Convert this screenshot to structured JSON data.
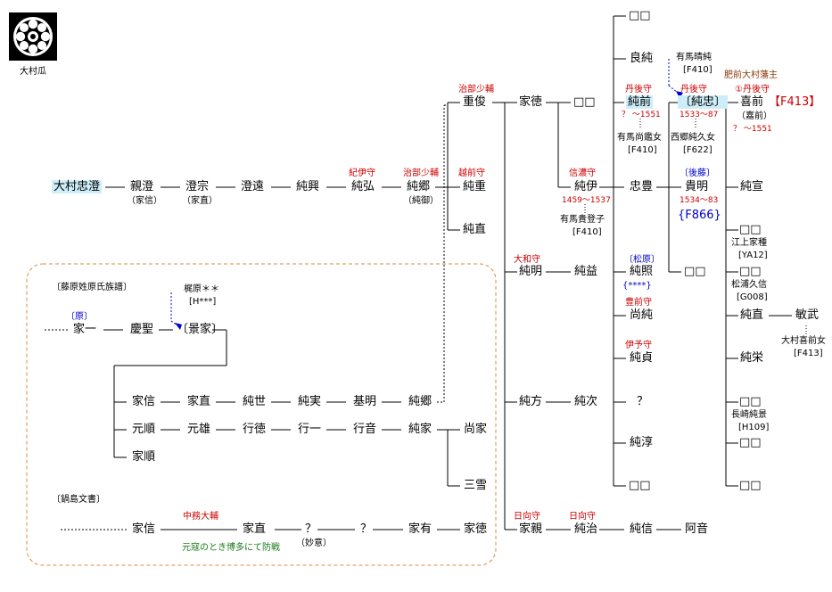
{
  "crest_label": "大村瓜",
  "section_fujiwara": "〔藤原姓原氏族譜〕",
  "section_nabeshima": "〔鍋島文書〕",
  "names": {
    "tadazumi": "大村忠澄",
    "chikasumi": "親澄",
    "chikasumi_alt": "（家信）",
    "sumimune": "澄宗",
    "sumimune_alt": "（家直）",
    "sumito": "澄遠",
    "sumioki": "純興",
    "sumihiro": "純弘",
    "sumisato": "純郷",
    "sumisato_alt": "（純御）",
    "shigetoshi": "重俊",
    "sumishige": "純重",
    "suminao_a": "純直",
    "ietoku_a": "家徳",
    "unknown_a": "□□",
    "sumiakira": "純明",
    "sumimasu": "純益",
    "sumikata": "純方",
    "sumitsugu": "純次",
    "iechika": "家親",
    "sumiharu": "純治",
    "suminobu": "純信",
    "anon": "阿音",
    "top_box": "□□",
    "yoshizumi": "良純",
    "sumisaki": "純前",
    "sumikore": "純伊",
    "tadatoyo": "忠豊",
    "sumiteru": "純照",
    "naozumi": "尚純",
    "sumisada": "純貞",
    "question_a": "？",
    "sumiatsu": "純淳",
    "bottom_box": "□□",
    "sumitada": "〔純忠〕",
    "takaakira": "貴明",
    "mid_box": "□□",
    "yoshisaki": "喜前",
    "yoshisaki_alt": "（嘉前）",
    "sumimune2": "純宣",
    "right_box1": "□□",
    "right_box2": "□□",
    "suminao_b": "純直",
    "sumiei": "純栄",
    "right_box3": "□□",
    "right_box4": "□□",
    "right_box5": "□□",
    "toshitake": "敏武",
    "ieichi": "家一",
    "keisei": "慶聖",
    "kageie": "〔景家〕",
    "ienobu_a": "家信",
    "ienao_a": "家直",
    "sumiyo": "純世",
    "sumizane": "純実",
    "motoaki": "基明",
    "sumisato_b": "純郷",
    "motoyori": "元順",
    "motoo": "元雄",
    "yukinori": "行徳",
    "yukikazu": "行一",
    "yukioto": "行音",
    "sumiie": "純家",
    "naoie": "尚家",
    "sansetsu": "三雪",
    "iejun": "家順",
    "ienobu_b": "家信",
    "ienao_b": "家直",
    "question_b": "？",
    "myoi": "（妙意）",
    "question_c": "？",
    "iearu": "家有",
    "ietoku_b": "家徳"
  },
  "titles": {
    "kii": "紀伊守",
    "jibu_sumisato": "治部少輔",
    "echizen": "越前守",
    "jibu_shige": "治部少輔",
    "yamato": "大和守",
    "hyuga_a": "日向守",
    "hyuga_b": "日向守",
    "shinano": "信濃守",
    "tango_a": "丹後守",
    "tango_b": "丹後守",
    "buzen": "豊前守",
    "iyo": "伊予守",
    "hizen_lord": "肥前大村藩主",
    "tango_1": "①丹後守",
    "nakatsukasa": "中務大輔"
  },
  "surnames": {
    "gosaka": "〔後藤〕",
    "matsubara": "〔松原〕",
    "hara": "〔原〕"
  },
  "dates": {
    "sumisaki": "？ ～1551",
    "sumitada": "1533～87",
    "sumikore": "1459～1537",
    "takaakira": "1534～83",
    "yoshisaki": "？ ～1551"
  },
  "notes": {
    "arima_haru": "有馬晴純",
    "arima_haru_ref": "[F410]",
    "arima_daughter": "有馬尚鑑女",
    "arima_daughter_ref": "[F410]",
    "saigo_daughter": "西郷純久女",
    "saigo_ref": "[F622]",
    "arima_koko": "有馬貴登子",
    "arima_koko_ref": "[F410]",
    "egami": "江上家種",
    "egami_ref": "[YA12]",
    "matsura": "松浦久信",
    "matsura_ref": "[G008]",
    "nagasaki": "長崎純景",
    "nagasaki_ref": "[H109]",
    "omura_daughter": "大村喜前女",
    "omura_daughter_ref": "[F413]",
    "kajiwara": "梶原＊＊",
    "kajiwara_ref": "[H***]",
    "genko": "元寇のとき博多にて防戦"
  },
  "refs": {
    "yoshisaki": "【F413】",
    "takaakira": "{F866}",
    "sumiteru": "{****}"
  },
  "colors": {
    "title_red": "#cc0000",
    "surname_blue": "#0000cc",
    "lord_brown": "#8b3a0a",
    "note_green": "#1a7a1a",
    "highlight": "#cdeef8",
    "group_border": "#e08a3a"
  }
}
